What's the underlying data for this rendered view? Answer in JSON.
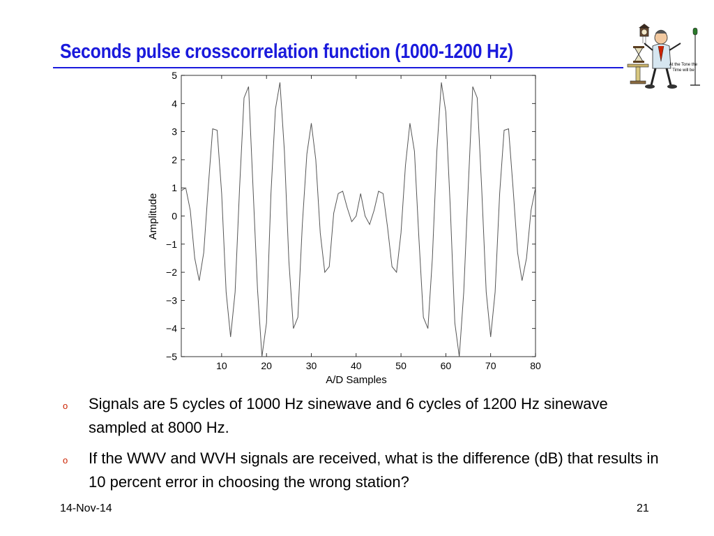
{
  "slide": {
    "title": "Seconds pulse crosscorrelation function (1000-1200 Hz)",
    "clipart_caption": [
      "At the Tone the",
      "Time will be"
    ],
    "bullets": [
      "Signals are 5 cycles of 1000 Hz sinewave and 6 cycles of 1200 Hz sinewave sampled at 8000 Hz.",
      "If the WWV and WVH signals are received, what is the difference (dB) that results in 10 percent error in choosing the wrong station?"
    ],
    "bullet_marker": "o",
    "footer_date": "14-Nov-14",
    "page_number": "21"
  },
  "colors": {
    "title": "#1a1adc",
    "bullet_marker": "#cc2200",
    "line": "#555555"
  },
  "chart_data": {
    "type": "line",
    "xlabel": "A/D Samples",
    "ylabel": "Amplitude",
    "xlim": [
      1,
      80
    ],
    "ylim": [
      -5,
      5
    ],
    "xticks": [
      10,
      20,
      30,
      40,
      50,
      60,
      70,
      80
    ],
    "yticks": [
      5,
      4,
      3,
      2,
      1,
      0,
      -1,
      -2,
      -3,
      -4,
      -5
    ],
    "ytick_labels": [
      "5",
      "4",
      "3",
      "2",
      "1",
      "0",
      "−1",
      "−2",
      "−3",
      "−4",
      "−5"
    ],
    "grid": false,
    "series": [
      {
        "x": [
          1,
          2,
          3,
          4,
          5,
          6,
          7,
          8,
          9,
          10,
          11,
          12,
          13,
          14,
          15,
          16,
          17,
          18,
          19,
          20,
          21,
          22,
          23,
          24,
          25,
          26,
          27,
          28,
          29,
          30,
          31,
          32,
          33,
          34,
          35,
          36,
          37,
          38,
          39,
          40,
          41,
          42,
          43,
          44,
          45,
          46,
          47,
          48,
          49,
          50,
          51,
          52,
          53,
          54,
          55,
          56,
          57,
          58,
          59,
          60,
          61,
          62,
          63,
          64,
          65,
          66,
          67,
          68,
          69,
          70,
          71,
          72,
          73,
          74,
          75,
          76,
          77,
          78,
          79,
          80
        ],
        "y": [
          0.9,
          1.0,
          0.2,
          -1.5,
          -2.3,
          -1.3,
          1.0,
          3.1,
          3.05,
          0.8,
          -2.7,
          -4.3,
          -2.7,
          1.0,
          4.2,
          4.6,
          1.0,
          -2.6,
          -5.0,
          -3.8,
          0.8,
          3.8,
          4.75,
          2.3,
          -1.6,
          -4.0,
          -3.6,
          -0.3,
          2.2,
          3.3,
          2.0,
          -0.6,
          -2.0,
          -1.8,
          0.1,
          0.8,
          0.88,
          0.3,
          -0.2,
          0.0,
          0.8,
          0.0,
          -0.3,
          0.2,
          0.88,
          0.8,
          -0.4,
          -1.8,
          -2.0,
          -0.6,
          1.8,
          3.3,
          2.3,
          -0.8,
          -3.6,
          -4.0,
          -1.5,
          2.3,
          4.75,
          3.7,
          0.3,
          -3.8,
          -5.0,
          -2.7,
          1.0,
          4.6,
          4.2,
          1.0,
          -2.7,
          -4.3,
          -2.7,
          0.8,
          3.05,
          3.1,
          1.0,
          -1.3,
          -2.3,
          -1.5,
          0.2,
          1.0
        ]
      }
    ]
  }
}
